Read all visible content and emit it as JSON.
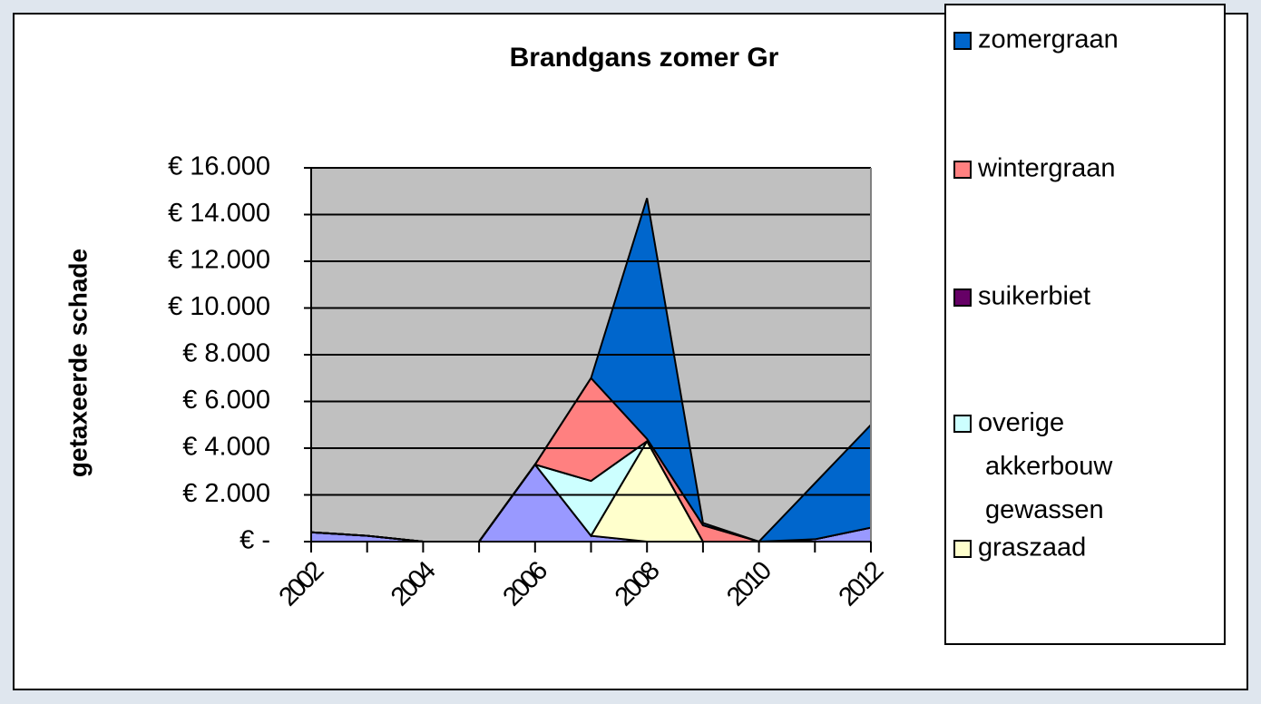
{
  "chart_data": {
    "type": "area",
    "stacked": true,
    "title": "Brandgans zomer Gr",
    "y_label": "getaxeerde schade",
    "categories": [
      "2002",
      null,
      "2004",
      null,
      "2006",
      null,
      "2008",
      null,
      "2010",
      null,
      "2012"
    ],
    "series": [
      {
        "color": "#9999ff",
        "values": [
          400,
          250,
          0,
          0,
          3300,
          250,
          0,
          0,
          0,
          100,
          600
        ]
      },
      {
        "name": "graszaad",
        "color": "#ffffcc",
        "values": [
          0,
          0,
          0,
          0,
          0,
          0,
          4300,
          0,
          0,
          0,
          0
        ]
      },
      {
        "name": "overige akkerbouw gewassen",
        "color": "#ccffff",
        "values": [
          0,
          0,
          0,
          0,
          0,
          2350,
          0,
          0,
          0,
          0,
          0
        ]
      },
      {
        "name": "suikerbiet",
        "color": "#660066",
        "values": [
          0,
          0,
          0,
          0,
          0,
          0,
          0,
          0,
          0,
          0,
          0
        ]
      },
      {
        "name": "wintergraan",
        "color": "#ff8080",
        "values": [
          0,
          0,
          0,
          0,
          0,
          4400,
          100,
          700,
          0,
          0,
          0
        ]
      },
      {
        "name": "zomergraan",
        "color": "#0066cc",
        "values": [
          0,
          0,
          0,
          0,
          0,
          0,
          10300,
          100,
          0,
          2400,
          4400
        ]
      }
    ],
    "ylim": [
      0,
      16000
    ],
    "yticks": [
      {
        "value": 0,
        "label": "€ -"
      },
      {
        "value": 2000,
        "label": "€ 2.000"
      },
      {
        "value": 4000,
        "label": "€ 4.000"
      },
      {
        "value": 6000,
        "label": "€ 6.000"
      },
      {
        "value": 8000,
        "label": "€ 8.000"
      },
      {
        "value": 10000,
        "label": "€ 10.000"
      },
      {
        "value": 12000,
        "label": "€ 12.000"
      },
      {
        "value": 14000,
        "label": "€ 14.000"
      },
      {
        "value": 16000,
        "label": "€ 16.000"
      }
    ],
    "grid": true,
    "legend": "right"
  }
}
